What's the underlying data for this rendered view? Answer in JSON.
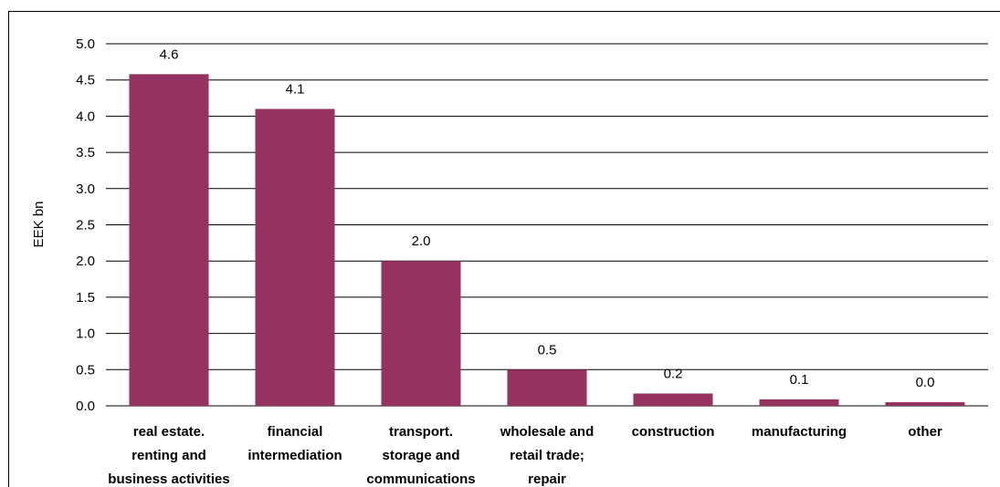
{
  "chart_data": {
    "type": "bar",
    "title": "",
    "xlabel": "",
    "ylabel": "EEK bn",
    "ylim": [
      0,
      5.0
    ],
    "yticks": [
      "0.0",
      "0.5",
      "1.0",
      "1.5",
      "2.0",
      "2.5",
      "3.0",
      "3.5",
      "4.0",
      "4.5",
      "5.0"
    ],
    "grid": true,
    "legend": "none",
    "bar_color": "#96325F",
    "categories": [
      [
        "real estate.",
        "renting and",
        "business activities"
      ],
      [
        "financial",
        "intermediation"
      ],
      [
        "transport.",
        "storage and",
        "communications"
      ],
      [
        "wholesale and",
        "retail trade;",
        "repair"
      ],
      [
        "construction"
      ],
      [
        "manufacturing"
      ],
      [
        "other"
      ]
    ],
    "values": [
      4.58,
      4.1,
      2.0,
      0.5,
      0.17,
      0.09,
      0.05
    ],
    "value_labels": [
      "4.6",
      "4.1",
      "2.0",
      "0.5",
      "0.2",
      "0.1",
      "0.0"
    ]
  }
}
